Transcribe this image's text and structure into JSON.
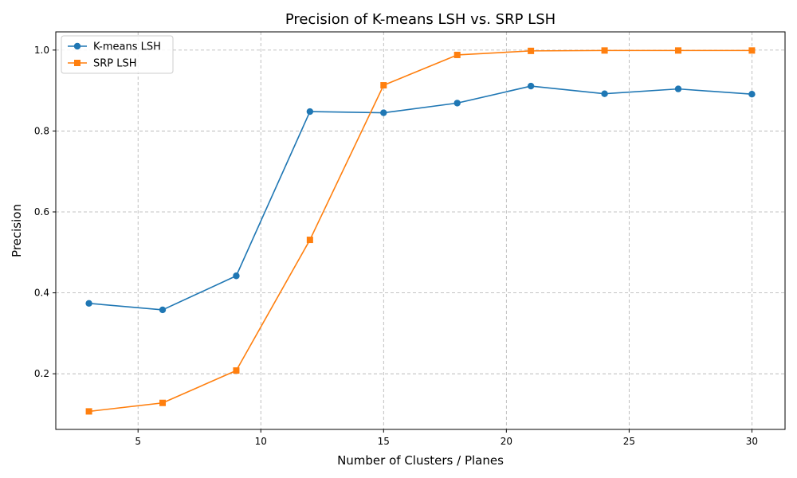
{
  "chart_data": {
    "type": "line",
    "title": "Precision of K-means LSH vs. SRP LSH",
    "xlabel": "Number of Clusters / Planes",
    "ylabel": "Precision",
    "x": [
      3,
      6,
      9,
      12,
      15,
      18,
      21,
      24,
      27,
      30
    ],
    "xlim": [
      1.65,
      31.35
    ],
    "ylim": [
      0.0625,
      1.045
    ],
    "xticks": [
      5,
      10,
      15,
      20,
      25,
      30
    ],
    "yticks": [
      0.2,
      0.4,
      0.6,
      0.8,
      1.0
    ],
    "xtick_labels": [
      "5",
      "10",
      "15",
      "20",
      "25",
      "30"
    ],
    "ytick_labels": [
      "0.2",
      "0.4",
      "0.6",
      "0.8",
      "1.0"
    ],
    "grid": true,
    "legend_position": "top-left",
    "series": [
      {
        "name": "K-means LSH",
        "color": "#1f77b4",
        "marker": "circle",
        "values": [
          0.374,
          0.358,
          0.442,
          0.848,
          0.845,
          0.869,
          0.911,
          0.892,
          0.904,
          0.891
        ]
      },
      {
        "name": "SRP LSH",
        "color": "#ff7f0e",
        "marker": "square",
        "values": [
          0.107,
          0.128,
          0.208,
          0.531,
          0.913,
          0.988,
          0.998,
          0.999,
          0.999,
          0.999
        ]
      }
    ]
  }
}
